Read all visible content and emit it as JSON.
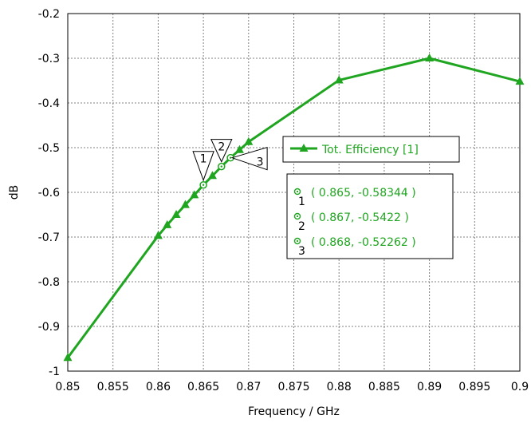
{
  "chart_data": {
    "type": "line",
    "xlabel": "Frequency / GHz",
    "ylabel": "dB",
    "xlim": [
      0.85,
      0.9
    ],
    "ylim": [
      -1,
      -0.2
    ],
    "xticks": [
      "0.85",
      "0.855",
      "0.86",
      "0.865",
      "0.87",
      "0.875",
      "0.88",
      "0.885",
      "0.89",
      "0.895",
      "0.9"
    ],
    "yticks": [
      "-0.2",
      "-0.3",
      "-0.4",
      "-0.5",
      "-0.6",
      "-0.7",
      "-0.8",
      "-0.9",
      "-1"
    ],
    "grid": true,
    "legend_position": "right",
    "series": [
      {
        "name": "Tot. Efficiency [1]",
        "color": "#1fa51f",
        "marker": "triangle",
        "x": [
          0.85,
          0.86,
          0.861,
          0.862,
          0.863,
          0.864,
          0.865,
          0.866,
          0.867,
          0.868,
          0.869,
          0.87,
          0.88,
          0.89,
          0.9
        ],
        "y": [
          -0.97,
          -0.697,
          -0.673,
          -0.65,
          -0.628,
          -0.606,
          -0.58344,
          -0.563,
          -0.5422,
          -0.52262,
          -0.505,
          -0.487,
          -0.349,
          -0.3,
          -0.352
        ]
      }
    ],
    "markers": [
      {
        "id": "1",
        "x": 0.865,
        "y": -0.58344,
        "label": "( 0.865, -0.58344 )"
      },
      {
        "id": "2",
        "x": 0.867,
        "y": -0.5422,
        "label": "( 0.867, -0.5422 )"
      },
      {
        "id": "3",
        "x": 0.868,
        "y": -0.52262,
        "label": "( 0.868, -0.52262 )"
      }
    ]
  }
}
